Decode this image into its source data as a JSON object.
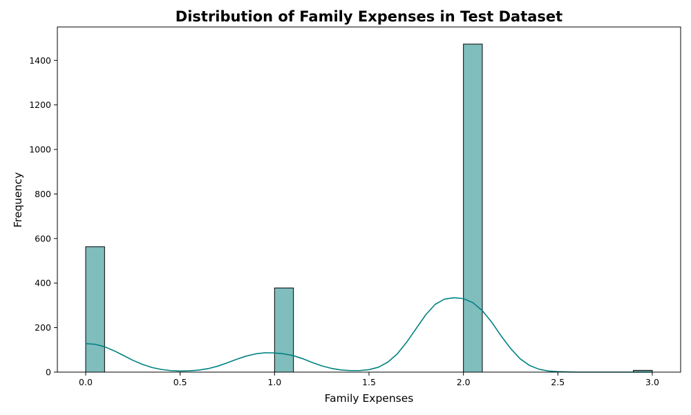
{
  "chart_data": {
    "type": "bar",
    "subtype": "histogram-with-kde",
    "title": "Distribution of Family Expenses in Test Dataset",
    "xlabel": "Family Expenses",
    "ylabel": "Frequency",
    "xlim": [
      -0.15,
      3.15
    ],
    "ylim": [
      0,
      1550
    ],
    "x_ticks": [
      0.0,
      0.5,
      1.0,
      1.5,
      2.0,
      2.5,
      3.0
    ],
    "x_tick_labels": [
      "0.0",
      "0.5",
      "1.0",
      "1.5",
      "2.0",
      "2.5",
      "3.0"
    ],
    "y_ticks": [
      0,
      200,
      400,
      600,
      800,
      1000,
      1200,
      1400
    ],
    "y_tick_labels": [
      "0",
      "200",
      "400",
      "600",
      "800",
      "1000",
      "1200",
      "1400"
    ],
    "bins": [
      {
        "x0": 0.0,
        "x1": 0.1,
        "count": 563
      },
      {
        "x0": 1.0,
        "x1": 1.1,
        "count": 378
      },
      {
        "x0": 2.0,
        "x1": 2.1,
        "count": 1473
      },
      {
        "x0": 2.9,
        "x1": 3.0,
        "count": 8
      }
    ],
    "kde": {
      "x": [
        0.0,
        0.05,
        0.1,
        0.15,
        0.2,
        0.25,
        0.3,
        0.35,
        0.4,
        0.45,
        0.5,
        0.55,
        0.6,
        0.65,
        0.7,
        0.75,
        0.8,
        0.85,
        0.9,
        0.95,
        1.0,
        1.05,
        1.1,
        1.15,
        1.2,
        1.25,
        1.3,
        1.35,
        1.4,
        1.45,
        1.5,
        1.55,
        1.6,
        1.65,
        1.7,
        1.75,
        1.8,
        1.85,
        1.9,
        1.95,
        2.0,
        2.05,
        2.1,
        2.15,
        2.2,
        2.25,
        2.3,
        2.35,
        2.4,
        2.45,
        2.5,
        2.55,
        2.6,
        2.7,
        2.8,
        2.9,
        3.0
      ],
      "y": [
        128,
        125,
        114,
        96,
        75,
        53,
        35,
        21,
        12,
        7,
        5,
        6,
        9,
        16,
        27,
        42,
        58,
        72,
        82,
        87,
        86,
        82,
        74,
        60,
        43,
        28,
        17,
        10,
        7,
        7,
        11,
        22,
        45,
        82,
        135,
        196,
        257,
        304,
        328,
        334,
        330,
        312,
        276,
        224,
        162,
        106,
        60,
        30,
        13,
        5,
        2,
        1,
        0,
        0,
        0,
        0,
        0
      ]
    },
    "bar_fill": "#80bdbd",
    "bar_edge": "#000000",
    "line_color": "#008080",
    "grid": false,
    "legend": "none"
  }
}
